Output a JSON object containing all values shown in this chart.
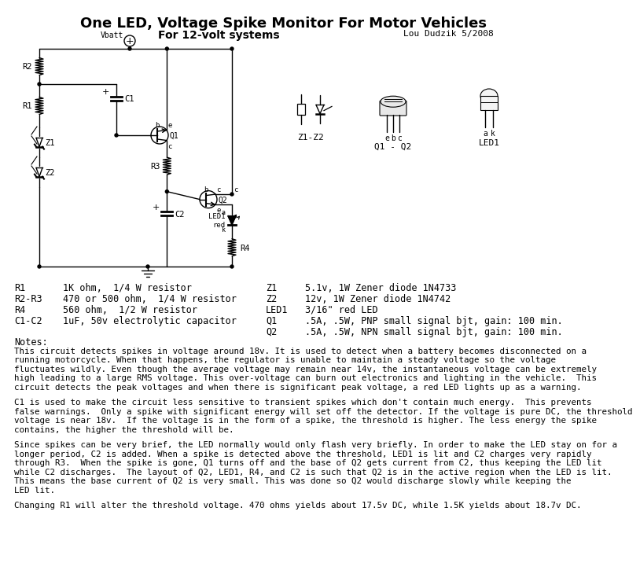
{
  "title": "One LED, Voltage Spike Monitor For Motor Vehicles",
  "subtitle": "For 12-volt systems",
  "author": "Lou Dudzik 5/2008",
  "bg_color": "#ffffff",
  "title_fontsize": 13,
  "sub_fontsize": 10,
  "author_fontsize": 8,
  "component_list_left": [
    [
      "R1",
      "1K ohm,  1/4 W resistor"
    ],
    [
      "R2-R3",
      "470 or 500 ohm,  1/4 W resistor"
    ],
    [
      "R4",
      "560 ohm,  1/2 W resistor"
    ],
    [
      "C1-C2",
      "1uF, 50v electrolytic capacitor"
    ]
  ],
  "component_list_right": [
    [
      "Z1",
      "5.1v, 1W Zener diode 1N4733"
    ],
    [
      "Z2",
      "12v, 1W Zener diode 1N4742"
    ],
    [
      "LED1",
      "3/16\" red LED"
    ],
    [
      "Q1",
      ".5A, .5W, PNP small signal bjt, gain: 100 min."
    ],
    [
      "Q2",
      ".5A, .5W, NPN small signal bjt, gain: 100 min."
    ]
  ],
  "notes_title": "Notes:",
  "para1": "This circuit detects spikes in voltage around 18v. It is used to detect when a battery becomes disconnected on a\nrunning motorcycle. When that happens, the regulator is unable to maintain a steady voltage so the voltage\nfluctuates wildly. Even though the average voltage may remain near 14v, the instantaneous voltage can be extremely\nhigh leading to a large RMS voltage. This over-voltage can burn out electronics and lighting in the vehicle.  This\ncircuit detects the peak voltages and when there is significant peak voltage, a red LED lights up as a warning.",
  "para2": "C1 is used to make the circuit less sensitive to transient spikes which don't contain much energy.  This prevents\nfalse warnings.  Only a spike with significant energy will set off the detector. If the voltage is pure DC, the threshold\nvoltage is near 18v.  If the voltage is in the form of a spike, the threshold is higher. The less energy the spike\ncontains, the higher the threshold will be.",
  "para3": "Since spikes can be very brief, the LED normally would only flash very briefly. In order to make the LED stay on for a\nlonger period, C2 is added. When a spike is detected above the threshold, LED1 is lit and C2 charges very rapidly\nthrough R3.  When the spike is gone, Q1 turns off and the base of Q2 gets current from C2, thus keeping the LED lit\nwhile C2 discharges.  The layout of Q2, LED1, R4, and C2 is such that Q2 is in the active region when the LED is lit.\nThis means the base current of Q2 is very small. This was done so Q2 would discharge slowly while keeping the\nLED lit.",
  "para4": "Changing R1 will alter the threshold voltage. 470 ohms yields about 17.5v DC, while 1.5K yields about 18.7v DC.",
  "line_color": "#000000",
  "text_color": "#000000"
}
